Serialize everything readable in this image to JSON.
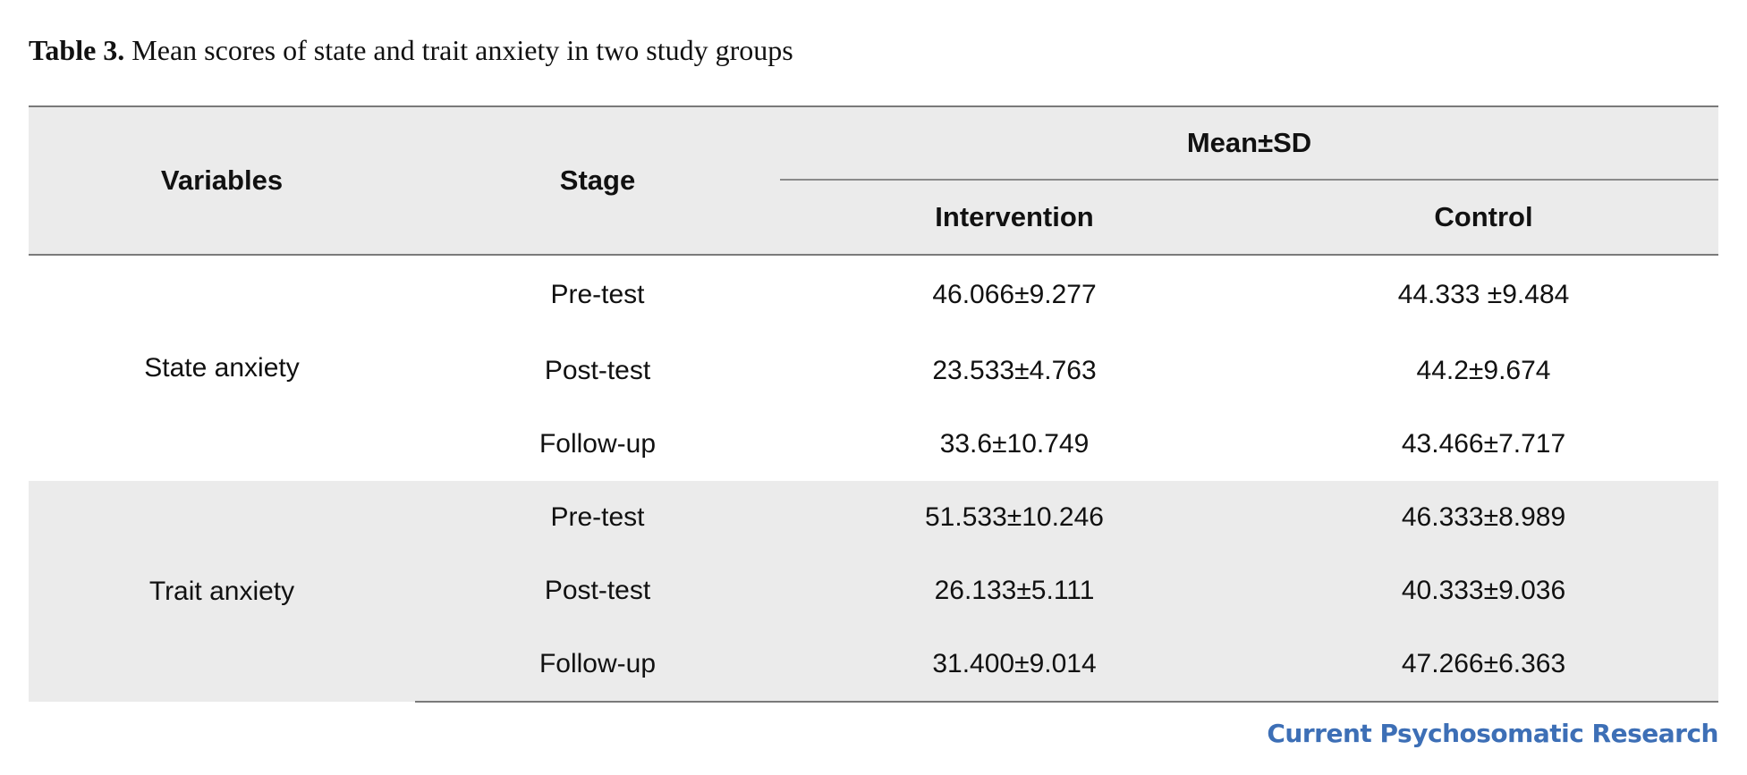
{
  "caption": {
    "label": "Table 3.",
    "text": "Mean scores of state and trait anxiety in two study groups"
  },
  "table": {
    "headers": {
      "variables": "Variables",
      "stage": "Stage",
      "mean_sd": "Mean±SD",
      "intervention": "Intervention",
      "control": "Control"
    },
    "groups": [
      {
        "variable": "State anxiety",
        "rows": [
          {
            "stage": "Pre-test",
            "intervention": "46.066±9.277",
            "control": "44.333 ±9.484"
          },
          {
            "stage": "Post-test",
            "intervention": "23.533±4.763",
            "control": "44.2±9.674"
          },
          {
            "stage": "Follow-up",
            "intervention": "33.6±10.749",
            "control": "43.466±7.717"
          }
        ]
      },
      {
        "variable": "Trait anxiety",
        "rows": [
          {
            "stage": "Pre-test",
            "intervention": "51.533±10.246",
            "control": "46.333±8.989"
          },
          {
            "stage": "Post-test",
            "intervention": "26.133±5.111",
            "control": "40.333±9.036"
          },
          {
            "stage": "Follow-up",
            "intervention": "31.400±9.014",
            "control": "47.266±6.363"
          }
        ]
      }
    ]
  },
  "footer": {
    "journal": "Current Psychosomatic Research"
  },
  "colors": {
    "header_bg": "#ebebeb",
    "rule": "#7a7a7a",
    "journal_brand": "#3d6fb6"
  }
}
